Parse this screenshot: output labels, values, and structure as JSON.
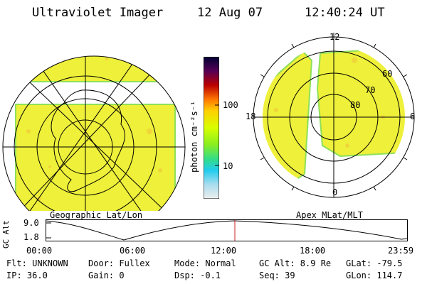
{
  "header": {
    "title": "Ultraviolet Imager",
    "date": "12 Aug 07",
    "time": "12:40:24 UT"
  },
  "left_map": {
    "caption": "Geographic Lat/Lon"
  },
  "right_map": {
    "caption": "Apex MLat/MLT",
    "mlt_labels": [
      "12",
      "18",
      "6",
      "0"
    ],
    "lat_labels": [
      "60",
      "70",
      "80"
    ]
  },
  "colorbar": {
    "label": "photon cm⁻²s⁻¹",
    "ticks": [
      "100",
      "10"
    ],
    "colors": [
      "#000033",
      "#1a0033",
      "#550055",
      "#880022",
      "#bb0000",
      "#ee3300",
      "#ff7700",
      "#ffaa00",
      "#ffd000",
      "#eeff00",
      "#b8ff00",
      "#66ee22",
      "#33dd88",
      "#22ccee",
      "#88ddee",
      "#cceeff",
      "#eeeeee"
    ]
  },
  "altitude_panel": {
    "ylabel": "GC Alt",
    "ymax": "9.0",
    "ymin": "1.8",
    "xticks": [
      "00:00",
      "06:00",
      "12:00",
      "18:00",
      "23:59"
    ]
  },
  "status": {
    "flt": "Flt: UNKNOWN",
    "ip": "IP: 36.0",
    "door": "Door: Fullex",
    "gain": "Gain:  0",
    "mode": "Mode: Normal",
    "dsp": "Dsp:  -0.1",
    "gcalt": "GC Alt: 8.9 Re",
    "seq": "Seq: 39",
    "glat": "GLat: -79.5",
    "glon": "GLon: 114.7"
  },
  "colors": {
    "image_fill": "#eef03a",
    "image_edge": "#8ee05a",
    "marker_line": "#cc2222"
  }
}
